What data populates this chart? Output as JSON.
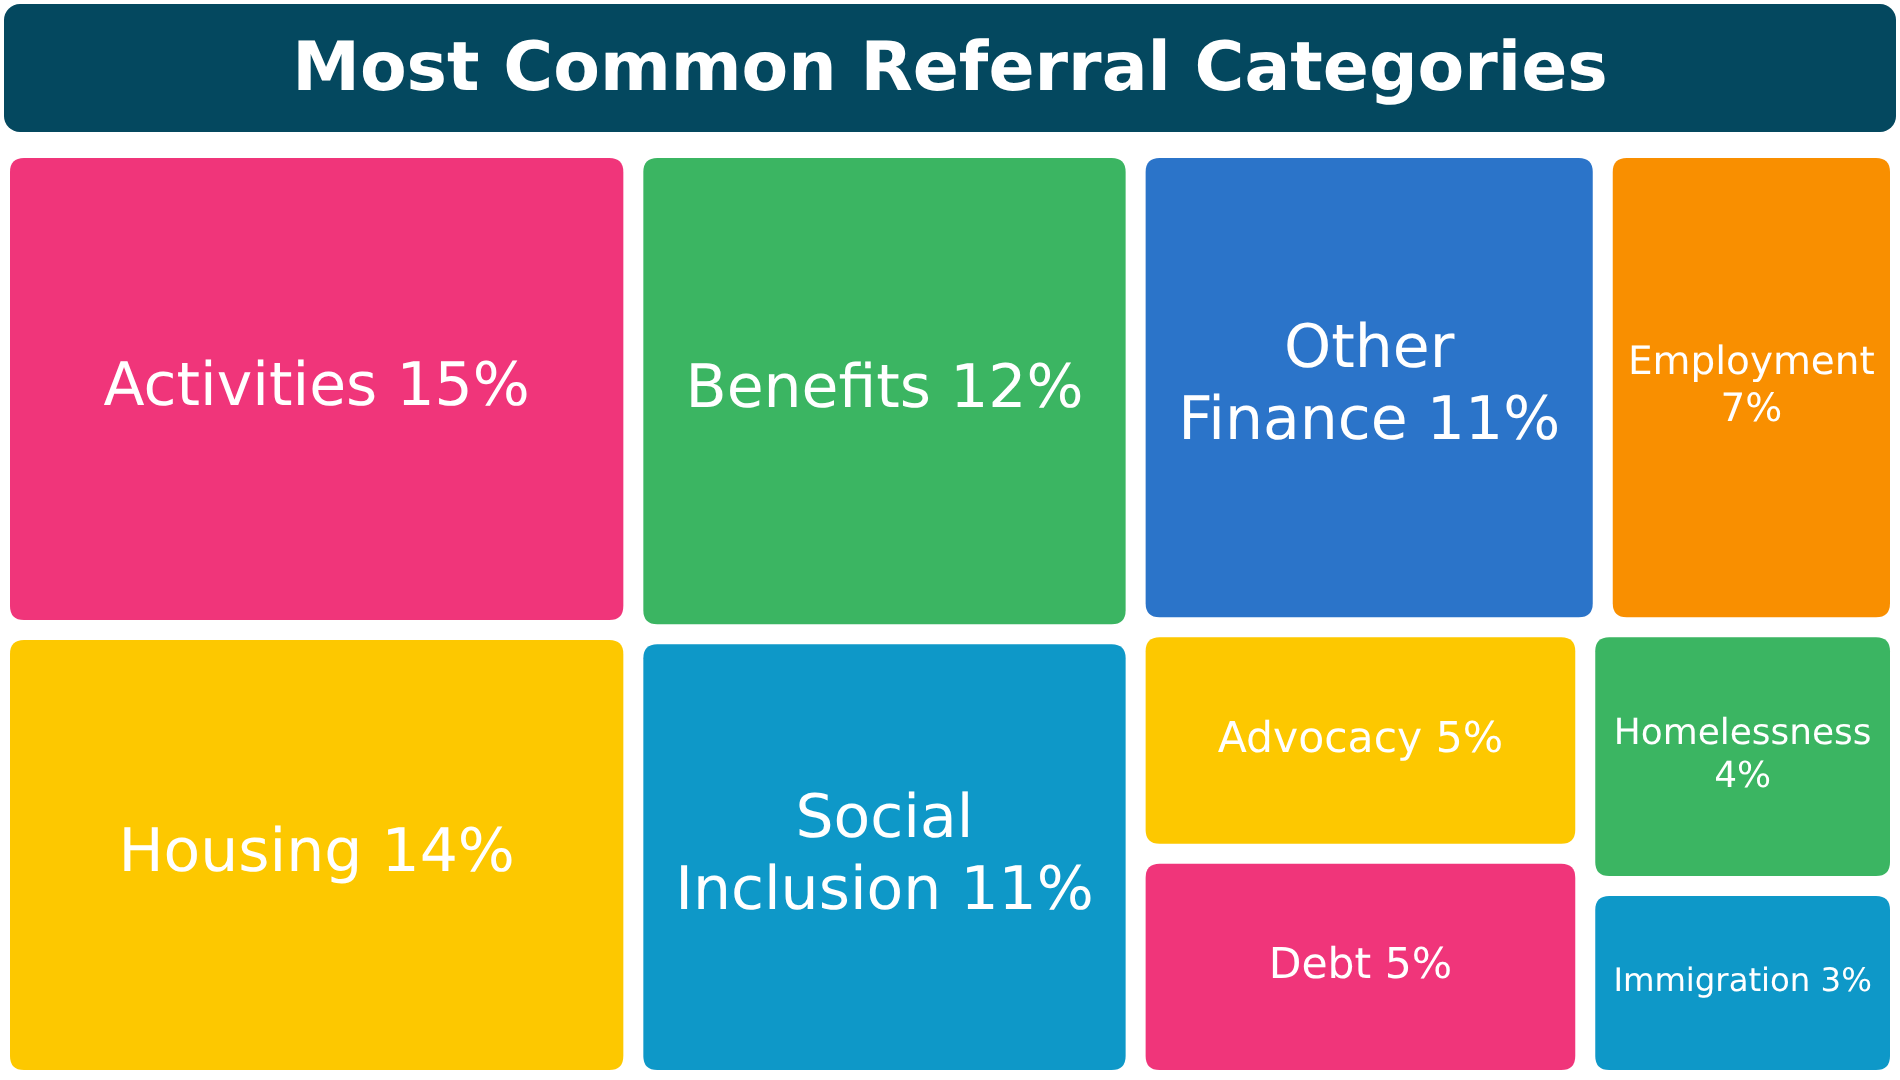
{
  "chart_data": {
    "type": "other",
    "title": "Most Common Referral Categories",
    "categories": [
      "Activities",
      "Housing",
      "Benefits",
      "Social Inclusion",
      "Other Finance",
      "Employment",
      "Advocacy",
      "Debt",
      "Homelessness",
      "Immigration"
    ],
    "values": [
      15,
      14,
      12,
      11,
      11,
      7,
      5,
      5,
      4,
      3
    ],
    "value_labels": [
      "15%",
      "14%",
      "12%",
      "11%",
      "11%",
      "7%",
      "5%",
      "5%",
      "4%",
      "3%"
    ],
    "colors": [
      "#f0357a",
      "#fdc800",
      "#3bb562",
      "#0e98c8",
      "#2b74c9",
      "#f98f00",
      "#fdc800",
      "#f0357a",
      "#3bb562",
      "#0e98c8"
    ]
  }
}
